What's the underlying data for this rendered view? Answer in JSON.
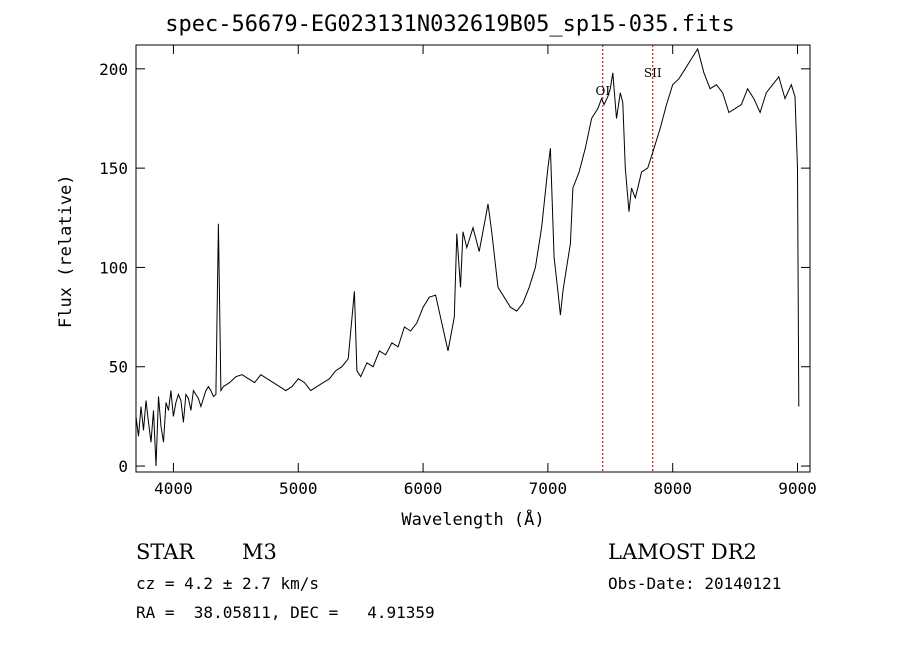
{
  "chart_data": {
    "type": "line",
    "title": "spec-56679-EG023131N032619B05_sp15-035.fits",
    "xlabel": "Wavelength (Å)",
    "ylabel": "Flux (relative)",
    "xlim": [
      3700,
      9100
    ],
    "ylim": [
      -3,
      212
    ],
    "xticks": [
      4000,
      5000,
      6000,
      7000,
      8000,
      9000
    ],
    "yticks": [
      0,
      50,
      100,
      150,
      200
    ],
    "grid": false,
    "line_color": "#000000",
    "series": [
      {
        "x": [
          3700,
          3720,
          3740,
          3760,
          3780,
          3800,
          3820,
          3840,
          3860,
          3880,
          3900,
          3920,
          3940,
          3960,
          3980,
          4000,
          4020,
          4040,
          4060,
          4080,
          4100,
          4120,
          4140,
          4160,
          4180,
          4200,
          4220,
          4240,
          4260,
          4280,
          4300,
          4320,
          4340,
          4360,
          4380,
          4400,
          4450,
          4500,
          4550,
          4600,
          4650,
          4700,
          4750,
          4800,
          4850,
          4900,
          4950,
          5000,
          5050,
          5100,
          5150,
          5200,
          5250,
          5300,
          5350,
          5400,
          5450,
          5470,
          5500,
          5550,
          5600,
          5650,
          5700,
          5750,
          5800,
          5850,
          5900,
          5950,
          6000,
          6050,
          6100,
          6150,
          6200,
          6250,
          6270,
          6300,
          6320,
          6350,
          6400,
          6450,
          6500,
          6520,
          6550,
          6600,
          6650,
          6700,
          6750,
          6800,
          6850,
          6900,
          6950,
          7000,
          7020,
          7050,
          7080,
          7100,
          7120,
          7150,
          7180,
          7200,
          7250,
          7300,
          7350,
          7400,
          7430,
          7450,
          7480,
          7500,
          7520,
          7550,
          7580,
          7600,
          7620,
          7650,
          7670,
          7700,
          7720,
          7750,
          7800,
          7850,
          7900,
          7950,
          8000,
          8050,
          8100,
          8150,
          8180,
          8200,
          8250,
          8300,
          8350,
          8400,
          8450,
          8500,
          8550,
          8600,
          8650,
          8700,
          8750,
          8800,
          8850,
          8900,
          8950,
          8980,
          9000,
          9010
        ],
        "y": [
          25,
          15,
          30,
          18,
          33,
          22,
          12,
          28,
          0,
          35,
          20,
          12,
          32,
          28,
          38,
          25,
          32,
          36,
          33,
          22,
          36,
          34,
          28,
          38,
          36,
          34,
          30,
          34,
          38,
          40,
          38,
          35,
          36,
          122,
          38,
          40,
          42,
          45,
          46,
          44,
          42,
          46,
          44,
          42,
          40,
          38,
          40,
          44,
          42,
          38,
          40,
          42,
          44,
          48,
          50,
          54,
          88,
          48,
          45,
          52,
          50,
          58,
          56,
          62,
          60,
          70,
          68,
          72,
          80,
          85,
          86,
          72,
          58,
          75,
          117,
          90,
          118,
          110,
          120,
          108,
          125,
          132,
          118,
          90,
          85,
          80,
          78,
          82,
          90,
          100,
          120,
          150,
          160,
          105,
          88,
          76,
          88,
          100,
          112,
          140,
          148,
          160,
          175,
          180,
          185,
          182,
          186,
          190,
          198,
          175,
          188,
          183,
          150,
          128,
          140,
          135,
          140,
          148,
          150,
          160,
          170,
          182,
          192,
          195,
          200,
          205,
          208,
          210,
          198,
          190,
          192,
          188,
          178,
          180,
          182,
          190,
          185,
          178,
          188,
          192,
          196,
          185,
          192,
          186,
          150,
          30
        ]
      }
    ],
    "markers": [
      {
        "label": "OI",
        "x": 7440
      },
      {
        "label": "SII",
        "x": 7840
      }
    ],
    "marker_color": "#8b0000"
  },
  "info": {
    "object_class": "STAR",
    "subclass": "M3",
    "survey": "LAMOST DR2",
    "cz": "cz = 4.2 ± 2.7 km/s",
    "obs_date": "Obs-Date: 20140121",
    "radec": "RA =  38.05811, DEC =   4.91359"
  }
}
